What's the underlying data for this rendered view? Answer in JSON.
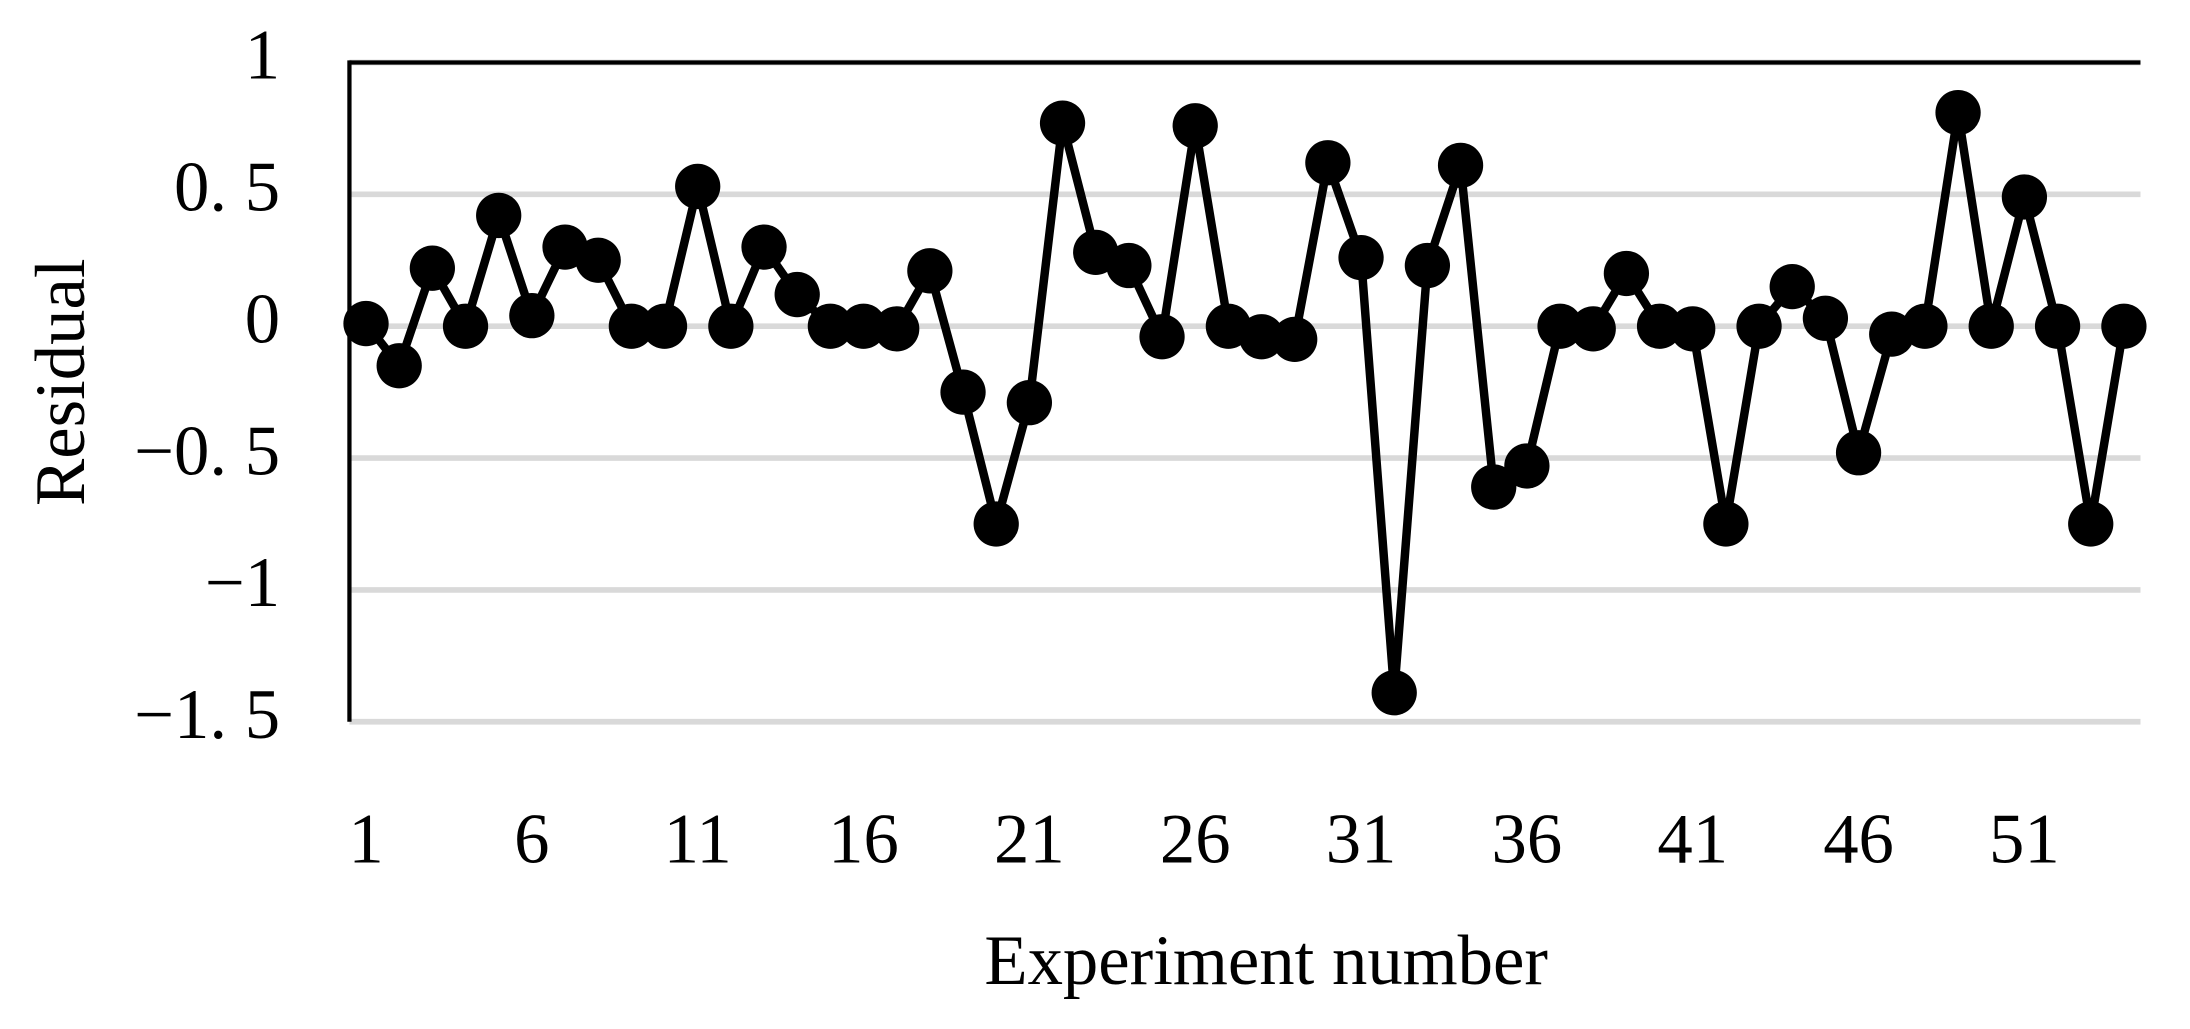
{
  "chart_data": {
    "type": "line",
    "x_label": "Experiment number",
    "y_label": "Residual",
    "x": [
      1,
      2,
      3,
      4,
      5,
      6,
      7,
      8,
      9,
      10,
      11,
      12,
      13,
      14,
      15,
      16,
      17,
      18,
      19,
      20,
      21,
      22,
      23,
      24,
      25,
      26,
      27,
      28,
      29,
      30,
      31,
      32,
      33,
      34,
      35,
      36,
      37,
      38,
      39,
      40,
      41,
      42,
      43,
      44,
      45,
      46,
      47,
      48,
      49,
      50,
      51,
      52,
      53,
      54
    ],
    "values": [
      0.01,
      -0.15,
      0.22,
      0,
      0.42,
      0.04,
      0.3,
      0.25,
      0,
      0,
      0.53,
      0,
      0.3,
      0.12,
      0,
      0,
      -0.01,
      0.21,
      -0.25,
      -0.75,
      -0.29,
      0.77,
      0.28,
      0.23,
      -0.04,
      0.76,
      0,
      -0.04,
      -0.05,
      0.62,
      0.26,
      -1.39,
      0.23,
      0.61,
      -0.61,
      -0.53,
      0,
      -0.01,
      0.2,
      0,
      -0.01,
      -0.75,
      0,
      0.15,
      0.03,
      -0.48,
      -0.03,
      0,
      0.81,
      0,
      0.49,
      0,
      -0.75,
      0
    ],
    "color": "#000000",
    "markers": true,
    "xlim": [
      0.5,
      54.5
    ],
    "xticks": [
      1,
      6,
      11,
      16,
      21,
      26,
      31,
      36,
      41,
      46,
      51
    ],
    "ylim": [
      -1.5,
      1
    ],
    "yticks": [
      1,
      {
        "value": 0.5,
        "label": "0. 5"
      },
      0,
      {
        "value": -0.5,
        "label": "−0. 5"
      },
      {
        "value": -1,
        "label": "−1"
      },
      {
        "value": -1.5,
        "label": "−1. 5"
      }
    ],
    "grid": true
  }
}
